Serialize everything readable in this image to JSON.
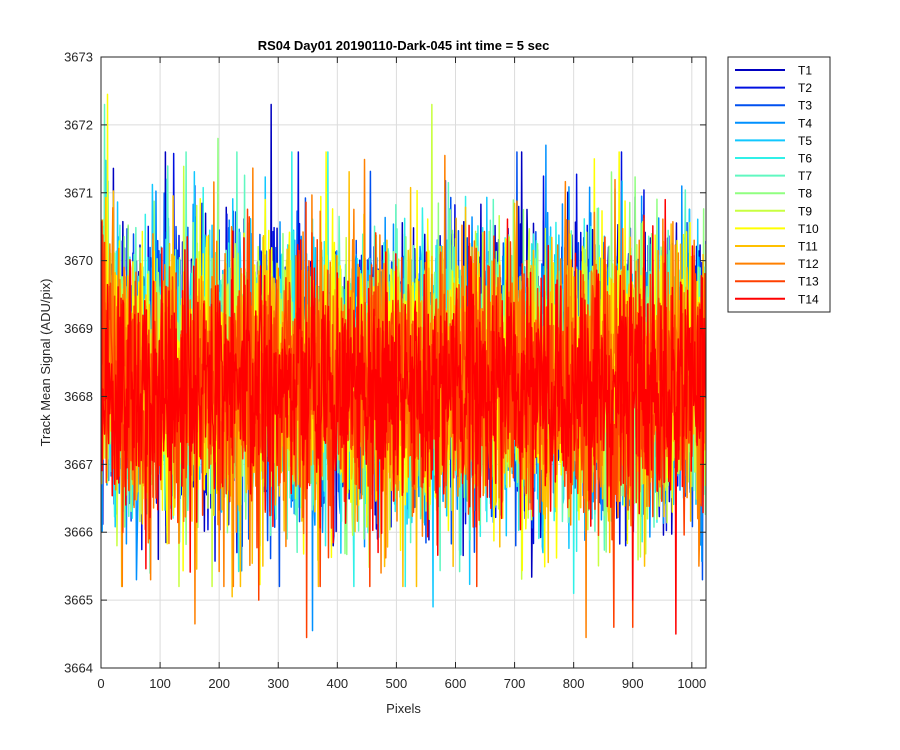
{
  "chart_data": {
    "type": "line",
    "title": "RS04 Day01 20190110-Dark-045 int time = 5 sec",
    "xlabel": "Pixels",
    "ylabel": "Track Mean Signal (ADU/pix)",
    "xlim": [
      0,
      1024
    ],
    "ylim": [
      3664,
      3673
    ],
    "xticks": [
      "0",
      "100",
      "200",
      "300",
      "400",
      "500",
      "600",
      "700",
      "800",
      "900",
      "1000"
    ],
    "yticks": [
      "3664",
      "3665",
      "3666",
      "3667",
      "3668",
      "3669",
      "3670",
      "3671",
      "3672",
      "3673"
    ],
    "grid": true,
    "legend_position": "outside top-right",
    "x_range": [
      1,
      1024
    ],
    "series": [
      {
        "name": "T1",
        "color": "#0000c0",
        "mean": 3668.45,
        "sd": 1.05,
        "extremes": [
          [
            288,
            3672.3
          ],
          [
            97,
            3665.6
          ],
          [
            393,
            3665.8
          ]
        ]
      },
      {
        "name": "T2",
        "color": "#0010e0",
        "mean": 3668.4,
        "sd": 1.0,
        "extremes": [
          [
            230,
            3665.7
          ],
          [
            468,
            3665.9
          ],
          [
            888,
            3665.8
          ]
        ]
      },
      {
        "name": "T3",
        "color": "#0050f0",
        "mean": 3668.4,
        "sd": 1.0,
        "extremes": [
          [
            1018,
            3665.3
          ],
          [
            702,
            3665.8
          ],
          [
            250,
            3665.9
          ]
        ]
      },
      {
        "name": "T4",
        "color": "#0090ff",
        "mean": 3668.35,
        "sd": 1.0,
        "extremes": [
          [
            358,
            3664.55
          ],
          [
            60,
            3665.3
          ],
          [
            753,
            3671.7
          ],
          [
            983,
            3671.1
          ]
        ]
      },
      {
        "name": "T5",
        "color": "#10c8ff",
        "mean": 3668.35,
        "sd": 1.0,
        "extremes": [
          [
            112,
            3671.2
          ],
          [
            562,
            3664.9
          ],
          [
            748,
            3665.7
          ]
        ]
      },
      {
        "name": "T6",
        "color": "#30f0e8",
        "mean": 3668.35,
        "sd": 1.0,
        "extremes": [
          [
            800,
            3665.1
          ],
          [
            380,
            3665.8
          ]
        ]
      },
      {
        "name": "T7",
        "color": "#60f8c0",
        "mean": 3668.3,
        "sd": 1.0,
        "extremes": [
          [
            6,
            3672.3
          ],
          [
            315,
            3665.9
          ]
        ]
      },
      {
        "name": "T8",
        "color": "#90ff80",
        "mean": 3668.3,
        "sd": 1.0,
        "extremes": [
          [
            198,
            3671.8
          ],
          [
            445,
            3665.9
          ]
        ]
      },
      {
        "name": "T9",
        "color": "#c8ff40",
        "mean": 3668.25,
        "sd": 1.0,
        "extremes": [
          [
            560,
            3672.3
          ],
          [
            188,
            3665.2
          ],
          [
            27,
            3665.8
          ]
        ]
      },
      {
        "name": "T10",
        "color": "#ffff00",
        "mean": 3668.25,
        "sd": 1.0,
        "extremes": [
          [
            11,
            3672.45
          ],
          [
            835,
            3671.5
          ]
        ]
      },
      {
        "name": "T11",
        "color": "#ffc000",
        "mean": 3668.2,
        "sd": 1.0,
        "extremes": [
          [
            222,
            3665.05
          ],
          [
            274,
            3665.5
          ],
          [
            920,
            3665.5
          ]
        ]
      },
      {
        "name": "T12",
        "color": "#ff8000",
        "mean": 3668.2,
        "sd": 1.0,
        "extremes": [
          [
            159,
            3664.65
          ],
          [
            788,
            3670.6
          ],
          [
            821,
            3664.45
          ],
          [
            84,
            3665.3
          ],
          [
            474,
            3665.4
          ]
        ]
      },
      {
        "name": "T13",
        "color": "#ff4000",
        "mean": 3668.15,
        "sd": 0.95,
        "extremes": [
          [
            267,
            3665.0
          ],
          [
            348,
            3664.45
          ],
          [
            868,
            3664.6
          ],
          [
            900,
            3664.6
          ]
        ]
      },
      {
        "name": "T14",
        "color": "#ff0000",
        "mean": 3668.15,
        "sd": 0.9,
        "extremes": [
          [
            973,
            3664.5
          ],
          [
            900,
            3665.0
          ],
          [
            955,
            3670.9
          ]
        ]
      }
    ]
  }
}
